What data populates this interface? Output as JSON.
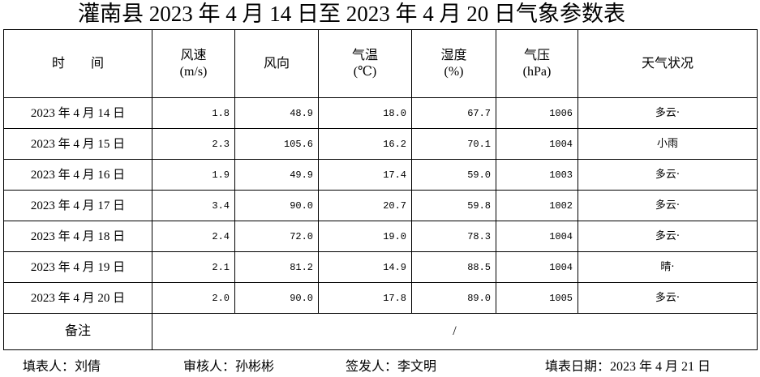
{
  "title": "灌南县 2023 年 4 月 14 日至 2023 年 4 月 20 日气象参数表",
  "table": {
    "header": [
      [
        "时　　间"
      ],
      [
        "风速",
        "(m/s)"
      ],
      [
        "风向"
      ],
      [
        "气温",
        "(℃)"
      ],
      [
        "湿度",
        "(%)"
      ],
      [
        "气压",
        "(hPa)"
      ],
      [
        "天气状况"
      ]
    ],
    "rows": [
      [
        "2023 年 4 月 14 日",
        "1.8",
        "48.9",
        "18.0",
        "67.7",
        "1006",
        "多云·"
      ],
      [
        "2023 年 4 月 15 日",
        "2.3",
        "105.6",
        "16.2",
        "70.1",
        "1004",
        "小雨"
      ],
      [
        "2023 年 4 月 16 日",
        "1.9",
        "49.9",
        "17.4",
        "59.0",
        "1003",
        "多云·"
      ],
      [
        "2023 年 4 月 17 日",
        "3.4",
        "90.0",
        "20.7",
        "59.8",
        "1002",
        "多云·"
      ],
      [
        "2023 年 4 月 18 日",
        "2.4",
        "72.0",
        "19.0",
        "78.3",
        "1004",
        "多云·"
      ],
      [
        "2023 年 4 月 19 日",
        "2.1",
        "81.2",
        "14.9",
        "88.5",
        "1004",
        "晴·"
      ],
      [
        "2023 年 4 月 20 日",
        "2.0",
        "90.0",
        "17.8",
        "89.0",
        "1005",
        "多云·"
      ]
    ],
    "remark": {
      "label": "备注",
      "value": "/"
    }
  },
  "footer": [
    "填表人：刘倩",
    "审核人：孙彬彬",
    "签发人：李文明",
    "填表日期：2023 年 4 月 21 日"
  ]
}
